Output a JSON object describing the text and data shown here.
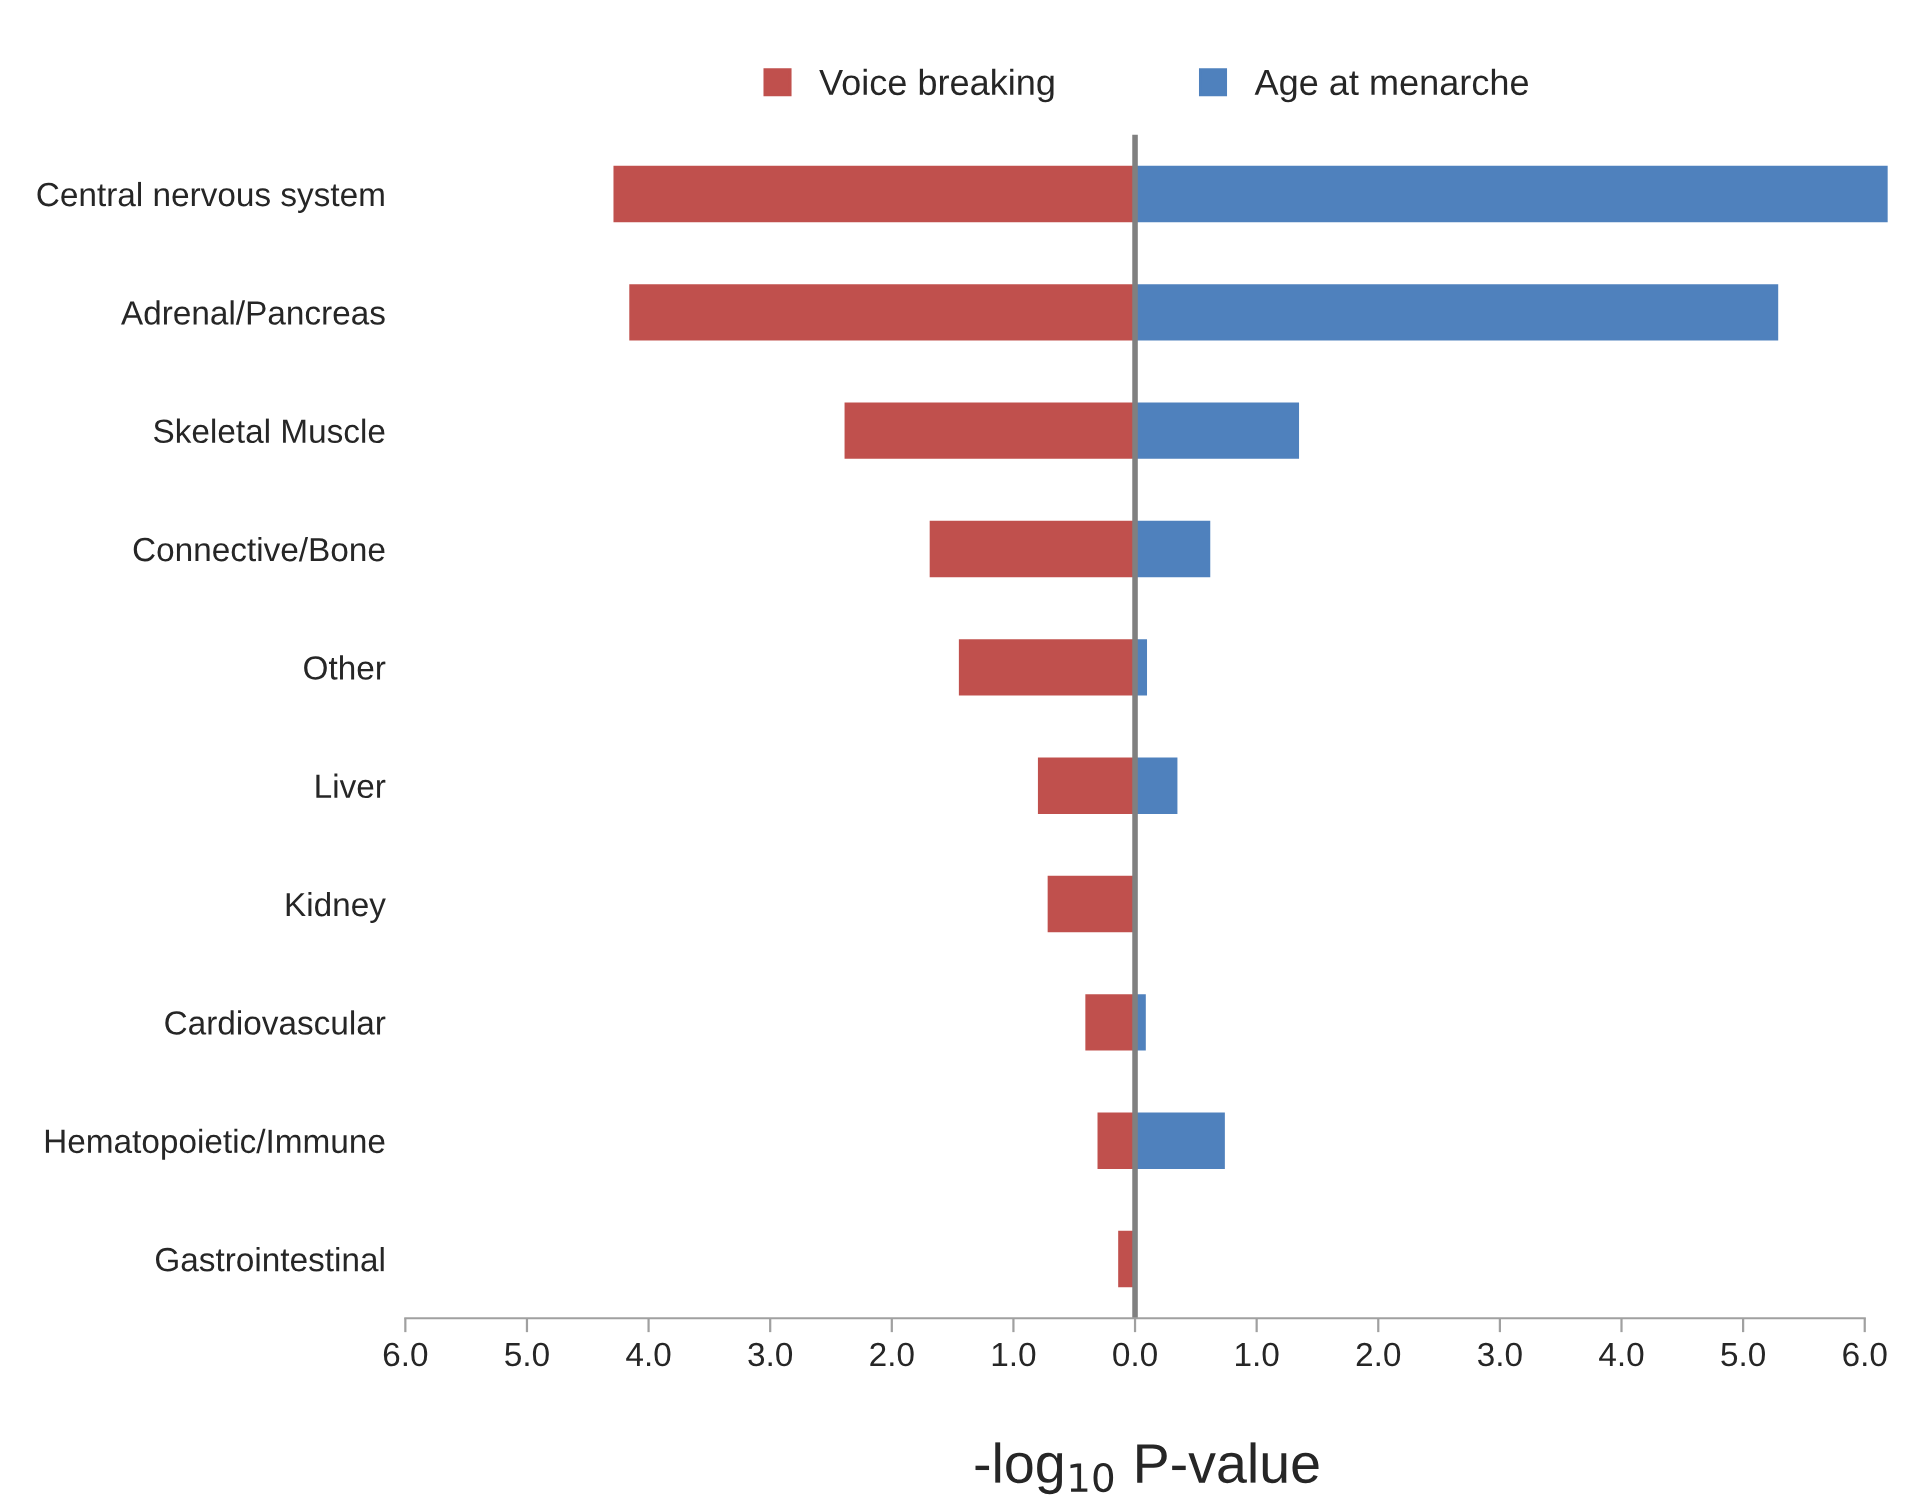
{
  "chart_data": {
    "type": "bar",
    "orientation": "horizontal",
    "xlabel": "-log$_{10}$ P-value",
    "categories": [
      "Central nervous system",
      "Adrenal/Pancreas",
      "Skeletal Muscle",
      "Connective/Bone",
      "Other",
      "Liver",
      "Kidney",
      "Cardiovascular",
      "Hematopoietic/Immune",
      "Gastrointestinal"
    ],
    "series": [
      {
        "name": "Voice breaking",
        "color": "#c0504d",
        "values": [
          -4.3,
          -4.17,
          -2.4,
          -1.7,
          -1.46,
          -0.81,
          -0.73,
          -0.42,
          -0.32,
          -0.15
        ]
      },
      {
        "name": "Age at menarche",
        "color": "#4f81bd",
        "values": [
          6.2,
          5.3,
          1.36,
          0.63,
          0.11,
          0.36,
          null,
          0.1,
          0.75,
          null
        ]
      }
    ],
    "xlim": [
      -6,
      6.2
    ],
    "xticks": [
      {
        "value": -6,
        "label": "6.0"
      },
      {
        "value": -5,
        "label": "5.0"
      },
      {
        "value": -4,
        "label": "4.0"
      },
      {
        "value": -3,
        "label": "3.0"
      },
      {
        "value": -2,
        "label": "2.0"
      },
      {
        "value": -1,
        "label": "1.0"
      },
      {
        "value": 0,
        "label": "0.0"
      },
      {
        "value": 1,
        "label": "1.0"
      },
      {
        "value": 2,
        "label": "2.0"
      },
      {
        "value": 3,
        "label": "3.0"
      },
      {
        "value": 4,
        "label": "4.0"
      },
      {
        "value": 5,
        "label": "5.0"
      },
      {
        "value": 6,
        "label": "6.0"
      }
    ],
    "ref_lines": [
      {
        "axis": "x",
        "value": 0,
        "color": "#808080"
      }
    ],
    "grid": false,
    "legend": "top",
    "stacked": true
  }
}
